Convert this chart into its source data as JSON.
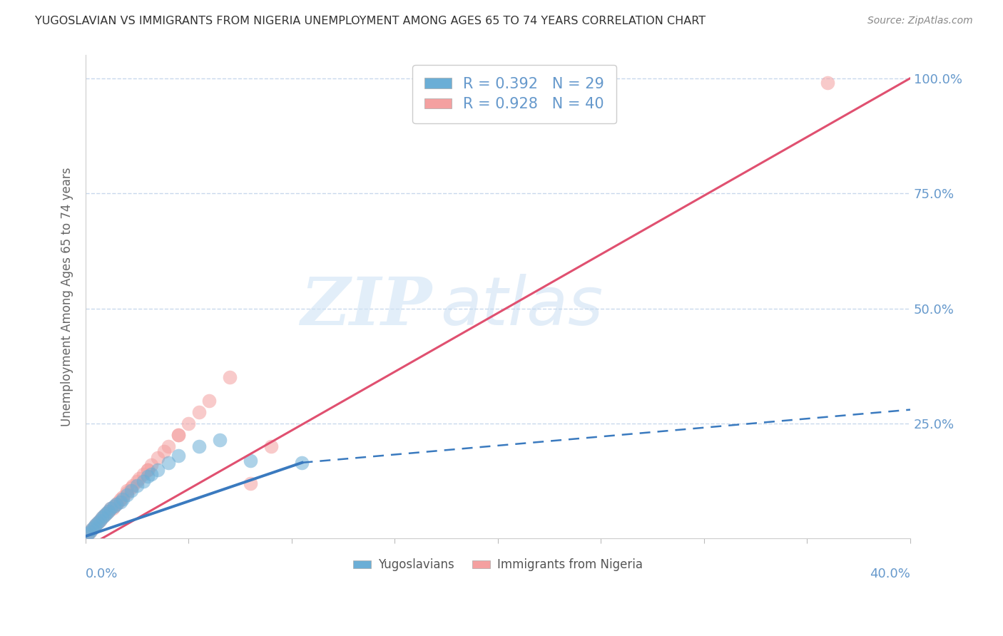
{
  "title": "YUGOSLAVIAN VS IMMIGRANTS FROM NIGERIA UNEMPLOYMENT AMONG AGES 65 TO 74 YEARS CORRELATION CHART",
  "source": "Source: ZipAtlas.com",
  "ylabel": "Unemployment Among Ages 65 to 74 years",
  "xlim": [
    0,
    40
  ],
  "ylim": [
    0,
    105
  ],
  "watermark_zip": "ZIP",
  "watermark_atlas": "atlas",
  "legend_r1": "R = 0.392   N = 29",
  "legend_r2": "R = 0.928   N = 40",
  "blue_color": "#6baed6",
  "pink_color": "#f4a0a0",
  "trend_blue": "#3a7abf",
  "trend_pink": "#e05070",
  "axis_color": "#6699cc",
  "grid_color": "#c8d8ec",
  "title_color": "#333333",
  "yuga_scatter_x": [
    0.1,
    0.2,
    0.3,
    0.4,
    0.5,
    0.6,
    0.7,
    0.8,
    0.9,
    1.0,
    1.1,
    1.2,
    1.4,
    1.5,
    1.7,
    1.8,
    2.0,
    2.2,
    2.5,
    2.8,
    3.0,
    3.2,
    3.5,
    4.0,
    4.5,
    5.5,
    6.5,
    8.0,
    10.5
  ],
  "yuga_scatter_y": [
    1.0,
    1.5,
    2.0,
    2.5,
    3.0,
    3.5,
    4.0,
    4.5,
    5.0,
    5.5,
    6.0,
    6.5,
    7.0,
    7.5,
    8.0,
    8.5,
    9.5,
    10.5,
    11.5,
    12.5,
    13.5,
    14.0,
    15.0,
    16.5,
    18.0,
    20.0,
    21.5,
    17.0,
    16.5
  ],
  "nigeria_scatter_x": [
    0.1,
    0.2,
    0.3,
    0.4,
    0.5,
    0.6,
    0.7,
    0.8,
    0.9,
    1.0,
    1.1,
    1.2,
    1.4,
    1.6,
    1.8,
    2.0,
    2.2,
    2.5,
    2.8,
    3.0,
    3.2,
    3.5,
    4.0,
    4.5,
    5.0,
    1.3,
    1.5,
    1.7,
    2.0,
    2.3,
    2.6,
    3.0,
    3.8,
    4.5,
    5.5,
    6.0,
    7.0,
    8.0,
    9.0,
    36.0
  ],
  "nigeria_scatter_y": [
    1.0,
    1.5,
    2.0,
    2.5,
    3.0,
    3.5,
    4.0,
    4.5,
    5.0,
    5.5,
    6.0,
    6.5,
    7.0,
    8.0,
    9.0,
    10.0,
    11.0,
    12.5,
    14.0,
    15.0,
    16.0,
    17.5,
    20.0,
    22.5,
    25.0,
    6.5,
    7.5,
    8.5,
    10.5,
    11.5,
    13.0,
    15.0,
    19.0,
    22.5,
    27.5,
    30.0,
    35.0,
    12.0,
    20.0,
    99.0
  ],
  "trend_blue_x0": 0.0,
  "trend_blue_y0": 0.5,
  "trend_blue_x_solid_end": 10.5,
  "trend_blue_y_solid_end": 16.5,
  "trend_blue_x_dash_end": 40.0,
  "trend_blue_y_dash_end": 28.0,
  "trend_pink_x0": 0.0,
  "trend_pink_y0": -2.0,
  "trend_pink_x1": 40.0,
  "trend_pink_y1": 100.0
}
